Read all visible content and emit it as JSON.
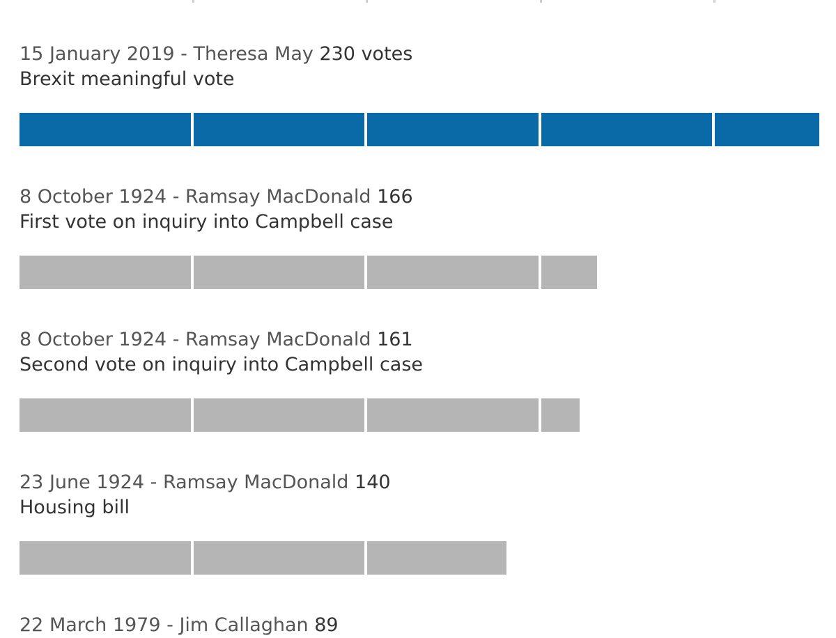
{
  "chart_data": {
    "type": "bar",
    "orientation": "horizontal",
    "unit_per_segment": 50,
    "xlim": [
      0,
      230
    ],
    "highlight_color": "#0a6aa8",
    "default_color": "#b5b5b6",
    "entries": [
      {
        "date_pm": "15 January 2019 - Theresa May",
        "count_label": "230 votes",
        "value": 230,
        "description": "Brexit meaningful vote",
        "highlight": true
      },
      {
        "date_pm": "8 October 1924 - Ramsay MacDonald",
        "count_label": "166",
        "value": 166,
        "description": "First vote on inquiry into Campbell case",
        "highlight": false
      },
      {
        "date_pm": "8 October 1924 - Ramsay MacDonald",
        "count_label": "161",
        "value": 161,
        "description": "Second vote on inquiry into Campbell case",
        "highlight": false
      },
      {
        "date_pm": "23 June 1924 - Ramsay MacDonald",
        "count_label": "140",
        "value": 140,
        "description": "Housing bill",
        "highlight": false
      },
      {
        "date_pm": "22 March 1979 - Jim Callaghan",
        "count_label": "89",
        "value": 89,
        "description": "",
        "highlight": false
      }
    ]
  }
}
